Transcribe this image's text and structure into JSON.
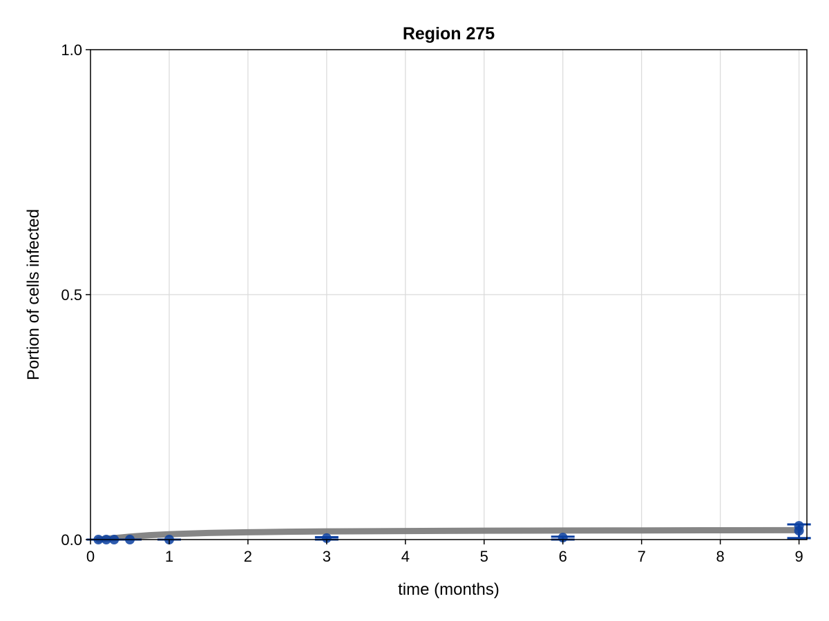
{
  "chart_data": {
    "type": "scatter",
    "title": "Region 275",
    "xlabel": "time (months)",
    "ylabel": "Portion of cells infected",
    "xlim": [
      0,
      9.1
    ],
    "ylim": [
      0,
      1.0
    ],
    "xticks": [
      0,
      1,
      2,
      3,
      4,
      5,
      6,
      7,
      8,
      9
    ],
    "yticks": [
      0.0,
      0.5,
      1.0
    ],
    "ytick_labels": [
      "0.0",
      "0.5",
      "1.0"
    ],
    "grid": true,
    "colors": {
      "points": "#0b3fa0",
      "fit_curve": "#808080",
      "grid": "#d9d9d9"
    },
    "series": [
      {
        "kind": "model-fit-curve",
        "x": [
          0.1,
          0.2,
          0.3,
          0.4,
          0.5,
          0.75,
          1,
          1.5,
          2,
          2.5,
          3,
          4,
          5,
          6,
          7,
          8,
          9
        ],
        "values": [
          0.0,
          0.0015,
          0.003,
          0.0045,
          0.006,
          0.009,
          0.011,
          0.0135,
          0.015,
          0.016,
          0.0167,
          0.0175,
          0.0181,
          0.0185,
          0.0188,
          0.019,
          0.0192
        ]
      },
      {
        "kind": "observations",
        "x": [
          0.1,
          0.2,
          0.3,
          0.5,
          1,
          3,
          6,
          9,
          9
        ],
        "values": [
          0.0,
          0.0,
          0.0,
          0.0,
          0.0,
          0.003,
          0.004,
          0.028,
          0.018
        ],
        "err_low": [
          0.0,
          0.0,
          0.0,
          0.0,
          0.0,
          0.0,
          0.0,
          0.003,
          0.003
        ],
        "err_high": [
          0.0,
          0.0,
          0.0,
          0.0,
          0.0,
          0.005,
          0.006,
          0.031,
          0.031
        ]
      }
    ]
  }
}
